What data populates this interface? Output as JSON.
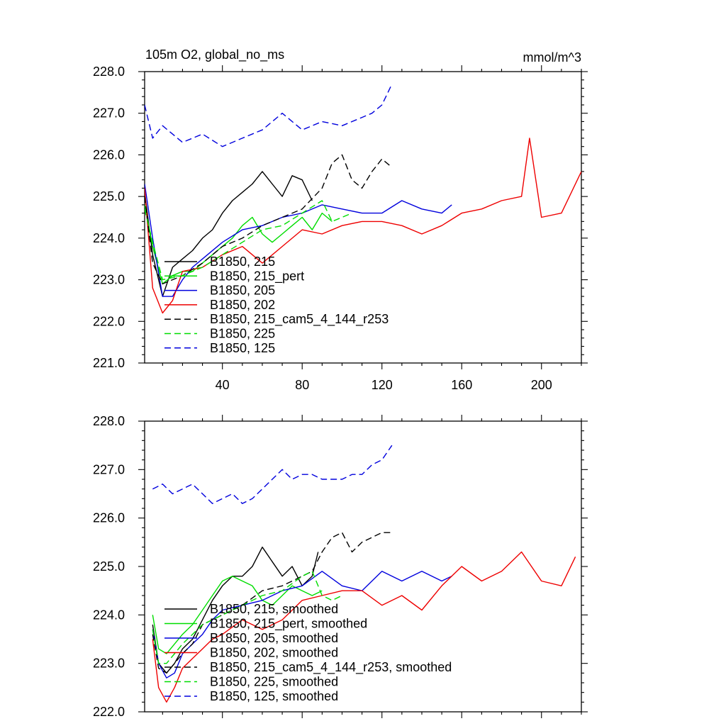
{
  "figure": {
    "title": "105m O2, global_no_ms",
    "units": "mmol/m^3"
  },
  "colors": {
    "black": "#000000",
    "green": "#00dd00",
    "blue": "#0000dd",
    "red": "#ee0000"
  },
  "chart_data": [
    {
      "type": "line",
      "title": "105m O2, global_no_ms",
      "units": "mmol/m^3",
      "xlim": [
        1,
        220
      ],
      "ylim": [
        221,
        228
      ],
      "xticks": [
        40,
        80,
        120,
        160,
        200
      ],
      "xtick_labels": [
        "40",
        "80",
        "120",
        "160",
        "200"
      ],
      "yticks": [
        221,
        222,
        223,
        224,
        225,
        226,
        227,
        228
      ],
      "ytick_labels": [
        "221.0",
        "222.0",
        "223.0",
        "224.0",
        "225.0",
        "226.0",
        "227.0",
        "228.0"
      ],
      "legend_position": "lower-left",
      "series": [
        {
          "name": "B1850, 215",
          "color": "black",
          "dash": "solid",
          "x": [
            1,
            5,
            10,
            15,
            20,
            25,
            30,
            35,
            40,
            45,
            50,
            55,
            60,
            65,
            70,
            75,
            80,
            85
          ],
          "values": [
            225.1,
            223.6,
            222.6,
            223.3,
            223.5,
            223.7,
            224.0,
            224.2,
            224.6,
            224.9,
            225.1,
            225.3,
            225.6,
            225.3,
            225.0,
            225.5,
            225.4,
            224.9
          ]
        },
        {
          "name": "B1850, 215_pert",
          "color": "green",
          "dash": "solid",
          "x": [
            1,
            5,
            10,
            15,
            20,
            25,
            30,
            35,
            40,
            45,
            50,
            55,
            60,
            65,
            70,
            75,
            80,
            85,
            90,
            95
          ],
          "values": [
            224.8,
            223.8,
            222.9,
            223.1,
            223.2,
            223.2,
            223.4,
            223.6,
            223.8,
            224.0,
            224.3,
            224.5,
            224.1,
            223.9,
            224.1,
            224.3,
            224.5,
            224.2,
            224.6,
            224.4
          ]
        },
        {
          "name": "B1850, 205",
          "color": "blue",
          "dash": "solid",
          "x": [
            1,
            5,
            10,
            15,
            20,
            25,
            30,
            40,
            50,
            60,
            70,
            80,
            90,
            100,
            110,
            120,
            130,
            140,
            150,
            155
          ],
          "values": [
            225.3,
            224.0,
            222.6,
            222.6,
            223.0,
            223.3,
            223.5,
            223.9,
            224.2,
            224.3,
            224.5,
            224.6,
            224.8,
            224.7,
            224.6,
            224.6,
            224.9,
            224.7,
            224.6,
            224.8
          ]
        },
        {
          "name": "B1850, 202",
          "color": "red",
          "dash": "solid",
          "x": [
            1,
            5,
            10,
            15,
            20,
            30,
            40,
            50,
            60,
            70,
            80,
            90,
            100,
            110,
            120,
            130,
            140,
            150,
            160,
            170,
            180,
            190,
            194,
            200,
            210,
            220
          ],
          "values": [
            225.2,
            222.8,
            222.2,
            222.5,
            223.2,
            223.3,
            223.6,
            223.8,
            223.4,
            223.8,
            224.2,
            224.1,
            224.3,
            224.4,
            224.4,
            224.3,
            224.1,
            224.3,
            224.6,
            224.7,
            224.9,
            225.0,
            226.4,
            224.5,
            224.6,
            225.6
          ]
        },
        {
          "name": "B1850, 215_cam5_4_144_r253",
          "color": "black",
          "dash": "dashed",
          "x": [
            1,
            5,
            10,
            20,
            30,
            40,
            50,
            60,
            70,
            80,
            90,
            95,
            100,
            105,
            110,
            115,
            120,
            125
          ],
          "values": [
            225.0,
            223.4,
            222.9,
            223.1,
            223.4,
            223.8,
            224.0,
            224.3,
            224.5,
            224.7,
            225.2,
            225.8,
            226.0,
            225.4,
            225.2,
            225.6,
            225.9,
            225.7
          ]
        },
        {
          "name": "B1850, 225",
          "color": "green",
          "dash": "dashed",
          "x": [
            1,
            5,
            10,
            20,
            30,
            40,
            50,
            60,
            70,
            80,
            90,
            95,
            100,
            105
          ],
          "values": [
            224.7,
            223.9,
            223.0,
            223.1,
            223.3,
            223.6,
            223.9,
            224.2,
            224.3,
            224.6,
            224.9,
            224.4,
            224.5,
            224.6
          ]
        },
        {
          "name": "B1850, 125",
          "color": "blue",
          "dash": "dashed",
          "x": [
            1,
            5,
            10,
            20,
            30,
            40,
            50,
            60,
            70,
            80,
            90,
            100,
            110,
            115,
            120,
            125
          ],
          "values": [
            227.2,
            226.4,
            226.7,
            226.3,
            226.5,
            226.2,
            226.4,
            226.6,
            227.0,
            226.6,
            226.8,
            226.7,
            226.9,
            227.0,
            227.2,
            227.7
          ]
        }
      ]
    },
    {
      "type": "line",
      "title": "",
      "xlim": [
        1,
        220
      ],
      "ylim": [
        222,
        228
      ],
      "yticks": [
        222,
        223,
        224,
        225,
        226,
        227,
        228
      ],
      "ytick_labels": [
        "222.0",
        "223.0",
        "224.0",
        "225.0",
        "226.0",
        "227.0",
        "228.0"
      ],
      "legend_position": "lower-left",
      "series": [
        {
          "name": "B1850, 215, smoothed",
          "color": "black",
          "dash": "solid",
          "x": [
            5,
            8,
            12,
            16,
            20,
            25,
            30,
            35,
            40,
            45,
            50,
            55,
            60,
            65,
            70,
            75,
            80,
            85,
            88
          ],
          "values": [
            223.8,
            223.0,
            222.8,
            223.0,
            223.3,
            223.5,
            223.9,
            224.3,
            224.6,
            224.8,
            224.8,
            225.0,
            225.4,
            225.1,
            224.8,
            225.0,
            224.6,
            224.8,
            225.3
          ]
        },
        {
          "name": "B1850, 215_pert, smoothed",
          "color": "green",
          "dash": "solid",
          "x": [
            5,
            8,
            12,
            16,
            20,
            25,
            30,
            35,
            40,
            45,
            50,
            55,
            60,
            65,
            70,
            75,
            80,
            85,
            90
          ],
          "values": [
            224.0,
            223.3,
            223.2,
            223.4,
            223.6,
            223.8,
            224.1,
            224.4,
            224.7,
            224.8,
            224.7,
            224.6,
            224.3,
            224.2,
            224.4,
            224.6,
            224.5,
            224.4,
            224.5
          ]
        },
        {
          "name": "B1850, 205, smoothed",
          "color": "blue",
          "dash": "solid",
          "x": [
            5,
            8,
            12,
            16,
            20,
            25,
            30,
            35,
            40,
            50,
            60,
            70,
            80,
            90,
            100,
            110,
            120,
            130,
            140,
            150,
            155
          ],
          "values": [
            223.7,
            223.0,
            222.7,
            222.8,
            223.2,
            223.4,
            223.6,
            223.9,
            224.1,
            224.2,
            224.3,
            224.5,
            224.6,
            224.9,
            224.6,
            224.5,
            224.9,
            224.7,
            224.9,
            224.7,
            224.8
          ]
        },
        {
          "name": "B1850, 202, smoothed",
          "color": "red",
          "dash": "solid",
          "x": [
            5,
            8,
            12,
            16,
            20,
            25,
            30,
            35,
            40,
            50,
            60,
            70,
            80,
            90,
            100,
            110,
            120,
            130,
            140,
            150,
            160,
            170,
            180,
            190,
            200,
            210,
            217
          ],
          "values": [
            223.5,
            222.5,
            222.2,
            222.5,
            222.9,
            223.1,
            223.3,
            223.5,
            223.6,
            223.9,
            223.7,
            223.9,
            224.3,
            224.4,
            224.5,
            224.5,
            224.2,
            224.4,
            224.1,
            224.6,
            225.0,
            224.7,
            224.9,
            225.3,
            224.7,
            224.6,
            225.2
          ]
        },
        {
          "name": "B1850, 215_cam5_4_144_r253, smoothed",
          "color": "black",
          "dash": "dashed",
          "x": [
            5,
            8,
            12,
            16,
            20,
            25,
            30,
            40,
            50,
            60,
            70,
            80,
            85,
            90,
            95,
            100,
            105,
            110,
            115,
            120,
            125
          ],
          "values": [
            223.6,
            222.9,
            222.8,
            223.0,
            223.2,
            223.4,
            223.8,
            224.0,
            224.2,
            224.5,
            224.6,
            224.8,
            224.9,
            225.3,
            225.6,
            225.7,
            225.3,
            225.5,
            225.6,
            225.7,
            225.7
          ]
        },
        {
          "name": "B1850, 225, smoothed",
          "color": "green",
          "dash": "dashed",
          "x": [
            5,
            8,
            12,
            16,
            20,
            25,
            30,
            40,
            50,
            60,
            70,
            80,
            85,
            90,
            95,
            100
          ],
          "values": [
            223.7,
            223.0,
            223.0,
            223.2,
            223.4,
            223.6,
            223.8,
            224.0,
            224.2,
            224.4,
            224.5,
            224.8,
            224.9,
            224.4,
            224.3,
            224.4
          ]
        },
        {
          "name": "B1850, 125, smoothed",
          "color": "blue",
          "dash": "dashed",
          "x": [
            5,
            10,
            15,
            20,
            25,
            30,
            35,
            40,
            45,
            50,
            55,
            60,
            65,
            70,
            75,
            80,
            85,
            90,
            95,
            100,
            105,
            110,
            115,
            120,
            125
          ],
          "values": [
            226.6,
            226.7,
            226.5,
            226.6,
            226.7,
            226.5,
            226.3,
            226.4,
            226.5,
            226.3,
            226.4,
            226.6,
            226.8,
            227.0,
            226.8,
            226.9,
            226.9,
            226.8,
            226.8,
            226.8,
            226.9,
            226.9,
            227.1,
            227.2,
            227.5
          ]
        }
      ]
    }
  ]
}
